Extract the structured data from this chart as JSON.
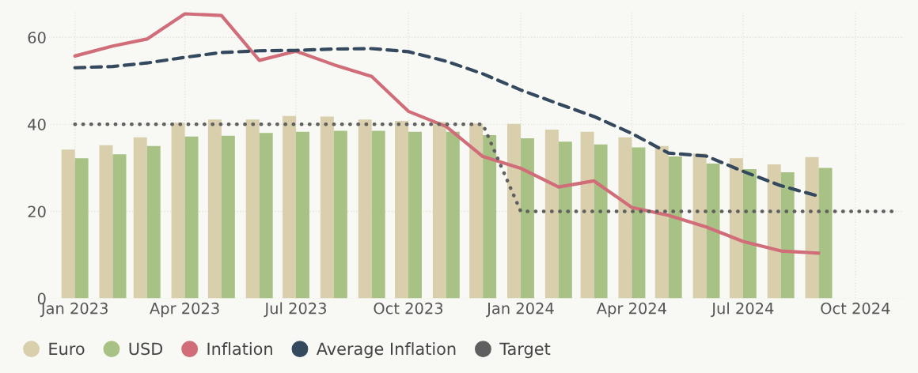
{
  "chart_data": {
    "type": "bar",
    "x": [
      "2023-01",
      "2023-02",
      "2023-03",
      "2023-04",
      "2023-05",
      "2023-06",
      "2023-07",
      "2023-08",
      "2023-09",
      "2023-10",
      "2023-11",
      "2023-12",
      "2024-01",
      "2024-02",
      "2024-03",
      "2024-04",
      "2024-05",
      "2024-06",
      "2024-07",
      "2024-08",
      "2024-09"
    ],
    "series": [
      {
        "name": "Euro",
        "color": "#d9cfad",
        "values": [
          34.2,
          35.2,
          37.0,
          40.4,
          41.1,
          41.1,
          41.9,
          41.8,
          41.1,
          40.8,
          40.5,
          40.2,
          40.1,
          38.8,
          38.3,
          37.0,
          35.0,
          33.3,
          32.2,
          30.8,
          32.5
        ]
      },
      {
        "name": "USD",
        "color": "#a8c285",
        "values": [
          32.2,
          33.1,
          35.0,
          37.2,
          37.4,
          38.0,
          38.3,
          38.5,
          38.5,
          38.3,
          38.3,
          37.5,
          36.8,
          36.0,
          35.4,
          34.7,
          32.6,
          31.0,
          29.7,
          29.0,
          30.0
        ]
      },
      {
        "name": "Inflation",
        "type": "line",
        "color": "#d06d78",
        "line_style": "solid",
        "values": [
          55.7,
          58.0,
          59.6,
          65.4,
          65.0,
          54.7,
          56.8,
          53.7,
          51.0,
          43.0,
          39.5,
          32.6,
          29.9,
          25.6,
          27.0,
          20.9,
          19.1,
          16.4,
          13.1,
          10.9,
          10.4
        ]
      },
      {
        "name": "Average Inflation",
        "type": "line",
        "color": "#34495e",
        "line_style": "dashed",
        "values": [
          53.0,
          53.3,
          54.1,
          55.4,
          56.5,
          56.9,
          57.0,
          57.3,
          57.4,
          56.7,
          54.5,
          51.6,
          47.9,
          44.7,
          41.8,
          37.9,
          33.4,
          32.7,
          29.2,
          25.9,
          23.5
        ]
      },
      {
        "name": "Target",
        "type": "line",
        "color": "#5f5f5f",
        "line_style": "dotted",
        "x": [
          "2023-01",
          "2023-02",
          "2023-03",
          "2023-04",
          "2023-05",
          "2023-06",
          "2023-07",
          "2023-08",
          "2023-09",
          "2023-10",
          "2023-11",
          "2023-12",
          "2024-01",
          "2024-02",
          "2024-03",
          "2024-04",
          "2024-05",
          "2024-06",
          "2024-07",
          "2024-08",
          "2024-09",
          "2024-10",
          "2024-11"
        ],
        "values": [
          40,
          40,
          40,
          40,
          40,
          40,
          40,
          40,
          40,
          40,
          40,
          40,
          20,
          20,
          20,
          20,
          20,
          20,
          20,
          20,
          20,
          20,
          20
        ]
      }
    ],
    "xlim": [
      "2022-12-12",
      "2024-11-10"
    ],
    "xticks": [
      {
        "value": "2023-01",
        "label": "Jan 2023"
      },
      {
        "value": "2023-04",
        "label": "Apr 2023"
      },
      {
        "value": "2023-07",
        "label": "Jul 2023"
      },
      {
        "value": "2023-10",
        "label": "Oct 2023"
      },
      {
        "value": "2024-01",
        "label": "Jan 2024"
      },
      {
        "value": "2024-04",
        "label": "Apr 2024"
      },
      {
        "value": "2024-07",
        "label": "Jul 2024"
      },
      {
        "value": "2024-10",
        "label": "Oct 2024"
      }
    ],
    "ylim": [
      0,
      66
    ],
    "yticks": [
      0,
      20,
      40,
      60
    ],
    "grid": true,
    "legend": "bottom left",
    "marker": "none"
  }
}
